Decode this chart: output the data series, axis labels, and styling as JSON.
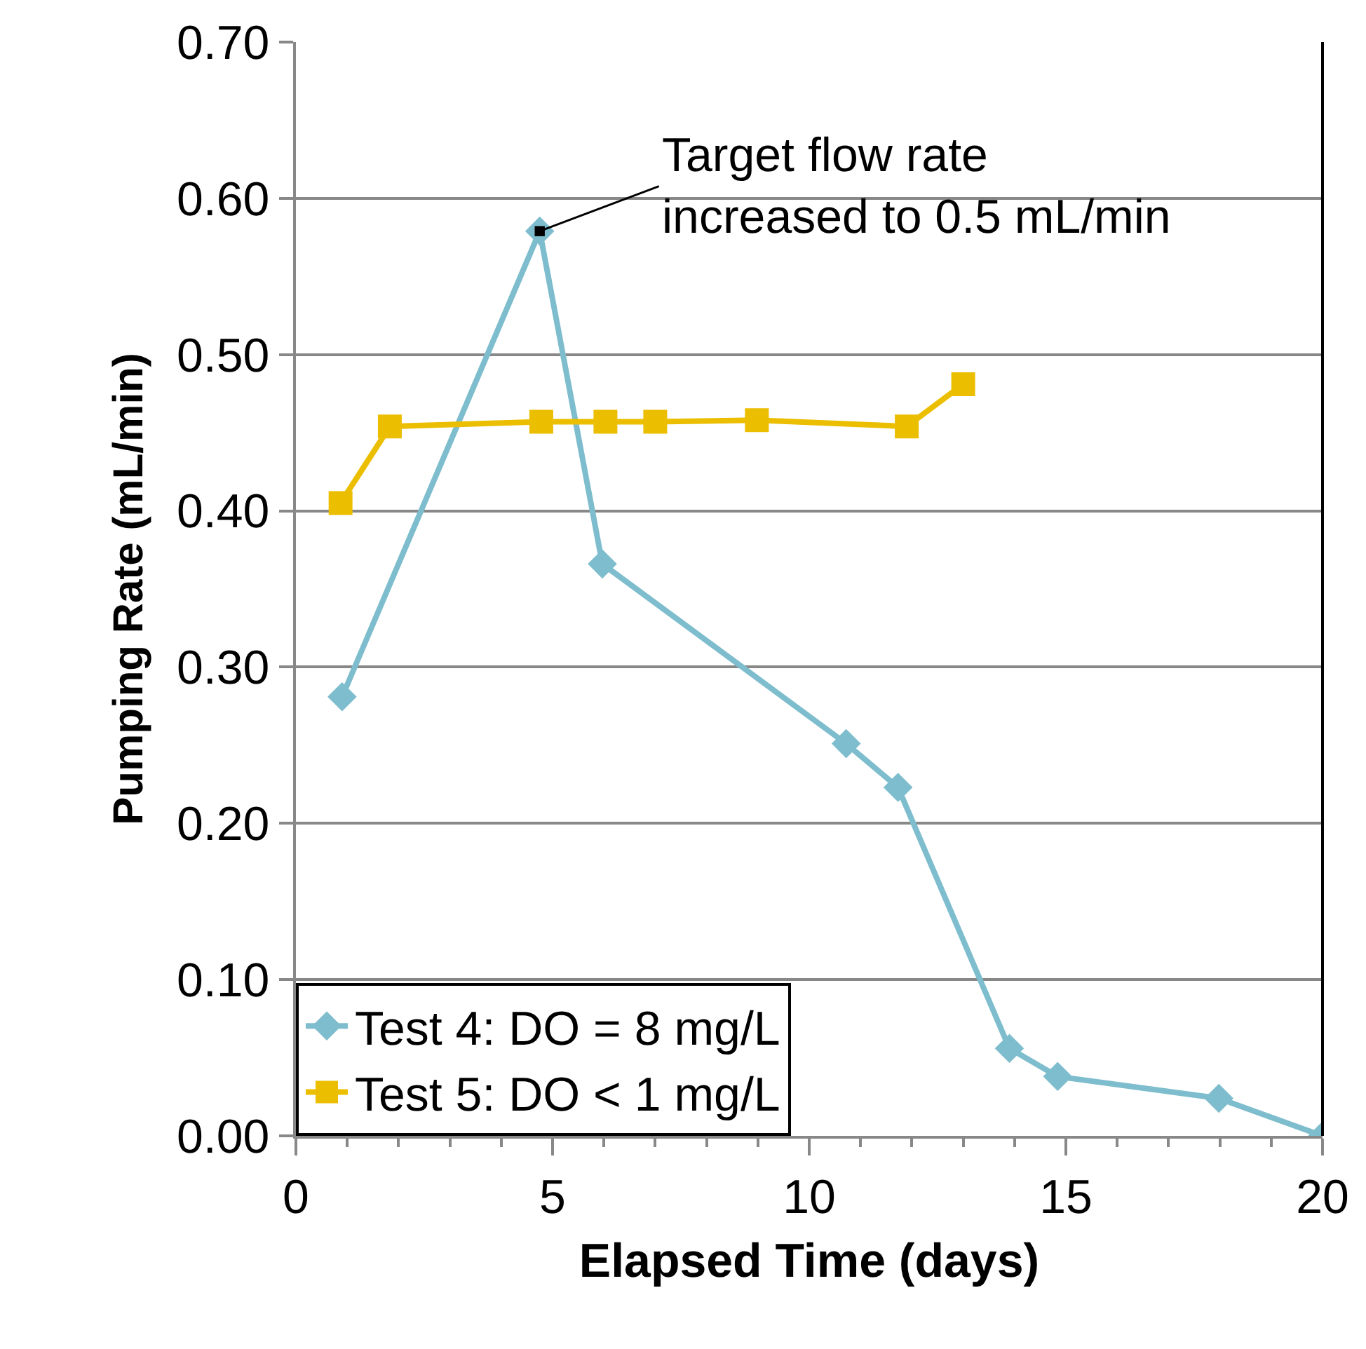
{
  "chart_data": {
    "type": "line",
    "xlabel": "Elapsed Time (days)",
    "ylabel": "Pumping Rate (mL/min)",
    "xlim": [
      0,
      20
    ],
    "xticks": [
      0,
      5,
      10,
      15,
      20
    ],
    "ylim": [
      0,
      0.7
    ],
    "yticks": [
      {
        "value": 0,
        "label": "0.00"
      },
      {
        "value": 0.1,
        "label": "0.10"
      },
      {
        "value": 0.2,
        "label": "0.20"
      },
      {
        "value": 0.3,
        "label": "0.30"
      },
      {
        "value": 0.4,
        "label": "0.40"
      },
      {
        "value": 0.5,
        "label": "0.50"
      },
      {
        "value": 0.6,
        "label": "0.60"
      },
      {
        "value": 0.7,
        "label": "0.70"
      }
    ],
    "grid": "y",
    "legend": "bottom left",
    "series": [
      {
        "name": "Test 4: DO = 8 mg/L",
        "color": "#7ebdcd",
        "marker": "diamond",
        "x": [
          0.9,
          4.75,
          5.97,
          10.72,
          11.73,
          13.9,
          14.84,
          17.98,
          20.0
        ],
        "values": [
          0.281,
          0.579,
          0.366,
          0.251,
          0.223,
          0.056,
          0.038,
          0.024,
          0.0
        ]
      },
      {
        "name": "Test 5: DO < 1 mg/L",
        "color": "#ebbe00",
        "marker": "square",
        "x": [
          0.87,
          1.83,
          4.78,
          6.03,
          7.0,
          8.98,
          11.9,
          13.0
        ],
        "values": [
          0.405,
          0.454,
          0.457,
          0.457,
          0.457,
          0.458,
          0.454,
          0.481
        ]
      }
    ],
    "annotations": [
      {
        "text": "Target flow rate\nincreased to 0.5 mL/min",
        "x": 4.75,
        "y": 0.579
      }
    ]
  }
}
